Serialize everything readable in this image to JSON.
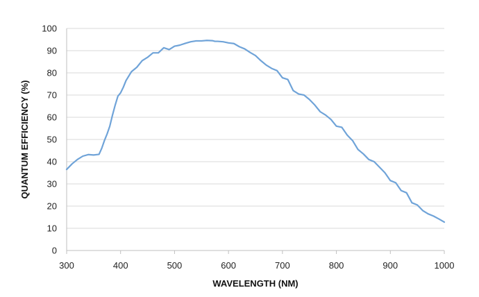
{
  "chart_data": {
    "type": "line",
    "title": "",
    "xlabel": "WAVELENGTH (NM)",
    "ylabel": "QUANTUM EFFICIENCY (%)",
    "xlim": [
      300,
      1000
    ],
    "ylim": [
      0,
      100
    ],
    "xticks": [
      300,
      400,
      500,
      600,
      700,
      800,
      900,
      1000
    ],
    "yticks": [
      0,
      10,
      20,
      30,
      40,
      50,
      60,
      70,
      80,
      90,
      100
    ],
    "grid": "horizontal",
    "series": [
      {
        "color": "#6fa3d8",
        "x": [
          300,
          310,
          320,
          330,
          340,
          350,
          360,
          365,
          370,
          375,
          380,
          385,
          390,
          395,
          400,
          405,
          410,
          420,
          430,
          440,
          450,
          460,
          470,
          480,
          490,
          500,
          510,
          520,
          530,
          540,
          550,
          560,
          570,
          575,
          580,
          590,
          600,
          610,
          620,
          630,
          640,
          650,
          660,
          670,
          680,
          690,
          700,
          710,
          720,
          730,
          740,
          750,
          760,
          770,
          780,
          790,
          800,
          810,
          820,
          830,
          840,
          850,
          860,
          870,
          880,
          890,
          900,
          910,
          920,
          930,
          940,
          950,
          960,
          970,
          980,
          990,
          1000
        ],
        "y": [
          36.5,
          39,
          41,
          42.5,
          43.2,
          43,
          43.3,
          46,
          49.5,
          52.5,
          56,
          61,
          65.5,
          69.5,
          71,
          73.5,
          76.5,
          80.5,
          82.5,
          85.5,
          87,
          89,
          89,
          91.3,
          90.5,
          92,
          92.5,
          93.3,
          94,
          94.4,
          94.4,
          94.6,
          94.5,
          94.2,
          94.2,
          94,
          93.5,
          93.2,
          91.8,
          90.8,
          89.2,
          87.8,
          85.5,
          83.5,
          82,
          81,
          77.8,
          77,
          72,
          70.5,
          70,
          68,
          65.5,
          62.5,
          61,
          59,
          56,
          55.5,
          52,
          49.5,
          45.5,
          43.5,
          41,
          40,
          37.5,
          35,
          31.5,
          30.5,
          27,
          26,
          21.5,
          20.5,
          18,
          16.5,
          15.5,
          14.2,
          12.8
        ]
      }
    ]
  }
}
